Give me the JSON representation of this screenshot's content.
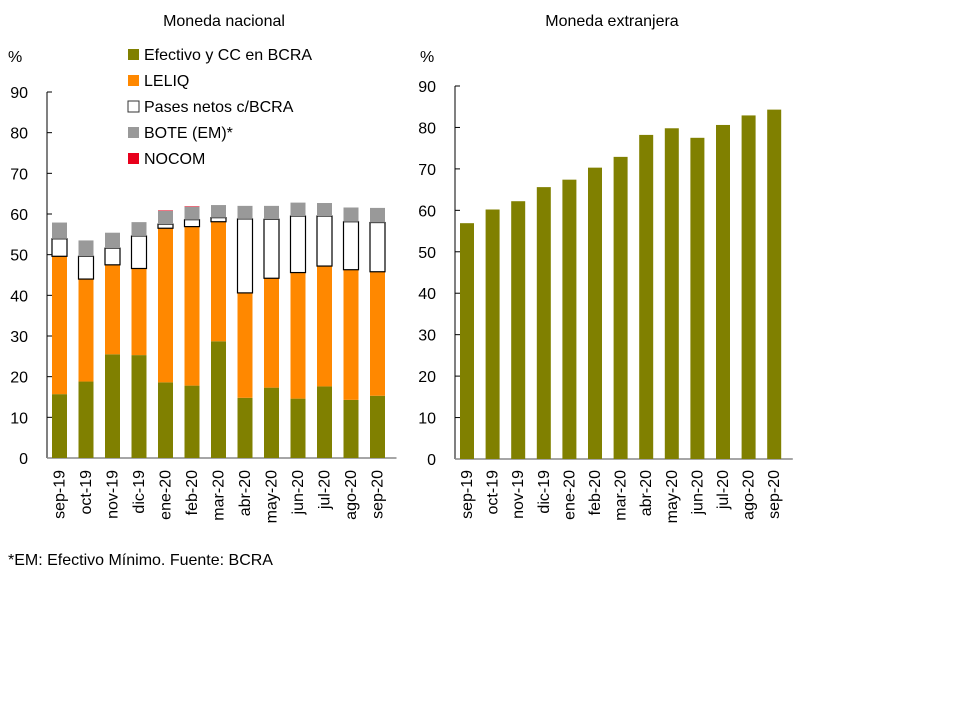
{
  "chart_data": [
    {
      "type": "bar",
      "stacked": true,
      "title": "Moneda nacional",
      "ylabel": "%",
      "xlabel": "",
      "ylim": [
        0,
        90
      ],
      "yticks": [
        0,
        10,
        20,
        30,
        40,
        50,
        60,
        70,
        80,
        90
      ],
      "legend_position": "top-right",
      "categories": [
        "sep-19",
        "oct-19",
        "nov-19",
        "dic-19",
        "ene-20",
        "feb-20",
        "mar-20",
        "abr-20",
        "may-20",
        "jun-20",
        "jul-20",
        "ago-20",
        "sep-20"
      ],
      "series": [
        {
          "name": "Efectivo y CC en BCRA",
          "color": "#808000",
          "values": [
            15.7,
            18.8,
            25.5,
            25.3,
            18.6,
            17.8,
            28.7,
            14.8,
            17.3,
            14.6,
            17.6,
            14.3,
            15.3
          ]
        },
        {
          "name": "LELIQ",
          "color": "#FF8800",
          "values": [
            33.9,
            25.2,
            22.0,
            21.3,
            37.9,
            39.1,
            29.4,
            25.8,
            26.9,
            31.0,
            29.6,
            32.0,
            30.5
          ]
        },
        {
          "name": "Pases netos c/BCRA",
          "color": "#FFFFFF",
          "values": [
            4.3,
            5.6,
            4.1,
            8.0,
            1.0,
            1.7,
            1.0,
            18.2,
            14.5,
            13.9,
            12.3,
            11.8,
            12.1
          ]
        },
        {
          "name": "BOTE (EM)*",
          "color": "#999999",
          "values": [
            4.0,
            3.9,
            3.8,
            3.4,
            3.3,
            3.2,
            3.1,
            3.2,
            3.3,
            3.3,
            3.2,
            3.5,
            3.6
          ]
        },
        {
          "name": "NOCOM",
          "color": "#E8001C",
          "values": [
            0,
            0,
            0,
            0,
            0.1,
            0.1,
            0,
            0,
            0,
            0,
            0,
            0,
            0
          ]
        }
      ]
    },
    {
      "type": "bar",
      "title": "Moneda extranjera",
      "ylabel": "%",
      "xlabel": "",
      "ylim": [
        0,
        90
      ],
      "yticks": [
        0,
        10,
        20,
        30,
        40,
        50,
        60,
        70,
        80,
        90
      ],
      "categories": [
        "sep-19",
        "oct-19",
        "nov-19",
        "dic-19",
        "ene-20",
        "feb-20",
        "mar-20",
        "abr-20",
        "may-20",
        "jun-20",
        "jul-20",
        "ago-20",
        "sep-20"
      ],
      "series": [
        {
          "name": "Efectivo y CC en BCRA",
          "color": "#808000",
          "values": [
            56.9,
            60.2,
            62.2,
            65.6,
            67.4,
            70.3,
            72.9,
            78.2,
            79.8,
            77.5,
            80.6,
            82.9,
            84.3
          ]
        }
      ]
    }
  ],
  "footnote": "*EM: Efectivo Mínimo. Fuente: BCRA"
}
